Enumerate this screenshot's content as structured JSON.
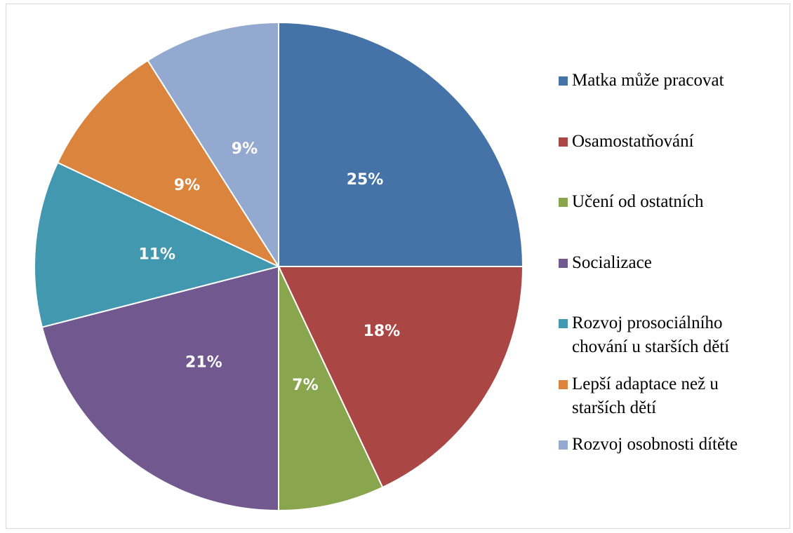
{
  "chart_data": {
    "type": "pie",
    "categories": [
      "Matka může pracovat",
      "Osamostatňování",
      "Učení od ostatních",
      "Socializace",
      "Rozvoj prosociálního chování u starších dětí",
      "Lepší adaptace než u starších dětí",
      "Rozvoj osobnosti dítěte"
    ],
    "values": [
      25,
      18,
      7,
      21,
      11,
      9,
      9
    ],
    "value_labels": [
      "25%",
      "18%",
      "7%",
      "21%",
      "11%",
      "9%",
      "9%"
    ],
    "colors": [
      "#4573a7",
      "#aa4643",
      "#89a54e",
      "#71588f",
      "#4198af",
      "#db843d",
      "#93a9cf"
    ],
    "legend": "right"
  }
}
